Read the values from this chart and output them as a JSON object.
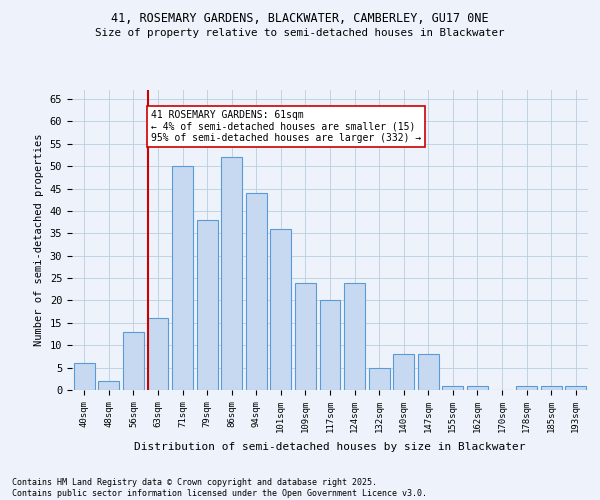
{
  "title1": "41, ROSEMARY GARDENS, BLACKWATER, CAMBERLEY, GU17 0NE",
  "title2": "Size of property relative to semi-detached houses in Blackwater",
  "xlabel": "Distribution of semi-detached houses by size in Blackwater",
  "ylabel": "Number of semi-detached properties",
  "footnote": "Contains HM Land Registry data © Crown copyright and database right 2025.\nContains public sector information licensed under the Open Government Licence v3.0.",
  "categories": [
    "40sqm",
    "48sqm",
    "56sqm",
    "63sqm",
    "71sqm",
    "79sqm",
    "86sqm",
    "94sqm",
    "101sqm",
    "109sqm",
    "117sqm",
    "124sqm",
    "132sqm",
    "140sqm",
    "147sqm",
    "155sqm",
    "162sqm",
    "170sqm",
    "178sqm",
    "185sqm",
    "193sqm"
  ],
  "values": [
    6,
    2,
    13,
    16,
    50,
    38,
    52,
    44,
    36,
    24,
    20,
    24,
    5,
    8,
    8,
    1,
    1,
    0,
    1,
    1,
    1
  ],
  "bar_color": "#c6d9f1",
  "bar_edgecolor": "#5b9bd5",
  "grid_color": "#b8cfe0",
  "background_color": "#eef3fb",
  "vline_color": "#cc0000",
  "annotation_title": "41 ROSEMARY GARDENS: 61sqm",
  "annotation_line1": "← 4% of semi-detached houses are smaller (15)",
  "annotation_line2": "95% of semi-detached houses are larger (332) →",
  "ylim": [
    0,
    67
  ],
  "yticks": [
    0,
    5,
    10,
    15,
    20,
    25,
    30,
    35,
    40,
    45,
    50,
    55,
    60,
    65
  ],
  "vline_bar_index": 3,
  "bar_width": 0.85
}
